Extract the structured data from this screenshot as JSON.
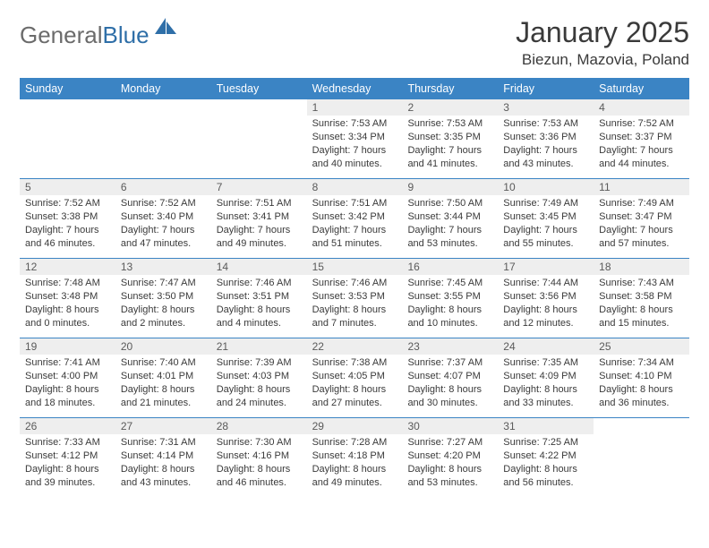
{
  "brand": {
    "part1": "General",
    "part2": "Blue"
  },
  "title": "January 2025",
  "subtitle": "Biezun, Mazovia, Poland",
  "colors": {
    "header_bg": "#3b84c4",
    "header_text": "#ffffff",
    "daynum_bg": "#eeeeee",
    "text": "#3a3a3a",
    "rule": "#3b84c4"
  },
  "weekdays": [
    "Sunday",
    "Monday",
    "Tuesday",
    "Wednesday",
    "Thursday",
    "Friday",
    "Saturday"
  ],
  "weeks": [
    [
      {
        "n": "",
        "sr": "",
        "ss": "",
        "dl": ""
      },
      {
        "n": "",
        "sr": "",
        "ss": "",
        "dl": ""
      },
      {
        "n": "",
        "sr": "",
        "ss": "",
        "dl": ""
      },
      {
        "n": "1",
        "sr": "Sunrise: 7:53 AM",
        "ss": "Sunset: 3:34 PM",
        "dl": "Daylight: 7 hours and 40 minutes."
      },
      {
        "n": "2",
        "sr": "Sunrise: 7:53 AM",
        "ss": "Sunset: 3:35 PM",
        "dl": "Daylight: 7 hours and 41 minutes."
      },
      {
        "n": "3",
        "sr": "Sunrise: 7:53 AM",
        "ss": "Sunset: 3:36 PM",
        "dl": "Daylight: 7 hours and 43 minutes."
      },
      {
        "n": "4",
        "sr": "Sunrise: 7:52 AM",
        "ss": "Sunset: 3:37 PM",
        "dl": "Daylight: 7 hours and 44 minutes."
      }
    ],
    [
      {
        "n": "5",
        "sr": "Sunrise: 7:52 AM",
        "ss": "Sunset: 3:38 PM",
        "dl": "Daylight: 7 hours and 46 minutes."
      },
      {
        "n": "6",
        "sr": "Sunrise: 7:52 AM",
        "ss": "Sunset: 3:40 PM",
        "dl": "Daylight: 7 hours and 47 minutes."
      },
      {
        "n": "7",
        "sr": "Sunrise: 7:51 AM",
        "ss": "Sunset: 3:41 PM",
        "dl": "Daylight: 7 hours and 49 minutes."
      },
      {
        "n": "8",
        "sr": "Sunrise: 7:51 AM",
        "ss": "Sunset: 3:42 PM",
        "dl": "Daylight: 7 hours and 51 minutes."
      },
      {
        "n": "9",
        "sr": "Sunrise: 7:50 AM",
        "ss": "Sunset: 3:44 PM",
        "dl": "Daylight: 7 hours and 53 minutes."
      },
      {
        "n": "10",
        "sr": "Sunrise: 7:49 AM",
        "ss": "Sunset: 3:45 PM",
        "dl": "Daylight: 7 hours and 55 minutes."
      },
      {
        "n": "11",
        "sr": "Sunrise: 7:49 AM",
        "ss": "Sunset: 3:47 PM",
        "dl": "Daylight: 7 hours and 57 minutes."
      }
    ],
    [
      {
        "n": "12",
        "sr": "Sunrise: 7:48 AM",
        "ss": "Sunset: 3:48 PM",
        "dl": "Daylight: 8 hours and 0 minutes."
      },
      {
        "n": "13",
        "sr": "Sunrise: 7:47 AM",
        "ss": "Sunset: 3:50 PM",
        "dl": "Daylight: 8 hours and 2 minutes."
      },
      {
        "n": "14",
        "sr": "Sunrise: 7:46 AM",
        "ss": "Sunset: 3:51 PM",
        "dl": "Daylight: 8 hours and 4 minutes."
      },
      {
        "n": "15",
        "sr": "Sunrise: 7:46 AM",
        "ss": "Sunset: 3:53 PM",
        "dl": "Daylight: 8 hours and 7 minutes."
      },
      {
        "n": "16",
        "sr": "Sunrise: 7:45 AM",
        "ss": "Sunset: 3:55 PM",
        "dl": "Daylight: 8 hours and 10 minutes."
      },
      {
        "n": "17",
        "sr": "Sunrise: 7:44 AM",
        "ss": "Sunset: 3:56 PM",
        "dl": "Daylight: 8 hours and 12 minutes."
      },
      {
        "n": "18",
        "sr": "Sunrise: 7:43 AM",
        "ss": "Sunset: 3:58 PM",
        "dl": "Daylight: 8 hours and 15 minutes."
      }
    ],
    [
      {
        "n": "19",
        "sr": "Sunrise: 7:41 AM",
        "ss": "Sunset: 4:00 PM",
        "dl": "Daylight: 8 hours and 18 minutes."
      },
      {
        "n": "20",
        "sr": "Sunrise: 7:40 AM",
        "ss": "Sunset: 4:01 PM",
        "dl": "Daylight: 8 hours and 21 minutes."
      },
      {
        "n": "21",
        "sr": "Sunrise: 7:39 AM",
        "ss": "Sunset: 4:03 PM",
        "dl": "Daylight: 8 hours and 24 minutes."
      },
      {
        "n": "22",
        "sr": "Sunrise: 7:38 AM",
        "ss": "Sunset: 4:05 PM",
        "dl": "Daylight: 8 hours and 27 minutes."
      },
      {
        "n": "23",
        "sr": "Sunrise: 7:37 AM",
        "ss": "Sunset: 4:07 PM",
        "dl": "Daylight: 8 hours and 30 minutes."
      },
      {
        "n": "24",
        "sr": "Sunrise: 7:35 AM",
        "ss": "Sunset: 4:09 PM",
        "dl": "Daylight: 8 hours and 33 minutes."
      },
      {
        "n": "25",
        "sr": "Sunrise: 7:34 AM",
        "ss": "Sunset: 4:10 PM",
        "dl": "Daylight: 8 hours and 36 minutes."
      }
    ],
    [
      {
        "n": "26",
        "sr": "Sunrise: 7:33 AM",
        "ss": "Sunset: 4:12 PM",
        "dl": "Daylight: 8 hours and 39 minutes."
      },
      {
        "n": "27",
        "sr": "Sunrise: 7:31 AM",
        "ss": "Sunset: 4:14 PM",
        "dl": "Daylight: 8 hours and 43 minutes."
      },
      {
        "n": "28",
        "sr": "Sunrise: 7:30 AM",
        "ss": "Sunset: 4:16 PM",
        "dl": "Daylight: 8 hours and 46 minutes."
      },
      {
        "n": "29",
        "sr": "Sunrise: 7:28 AM",
        "ss": "Sunset: 4:18 PM",
        "dl": "Daylight: 8 hours and 49 minutes."
      },
      {
        "n": "30",
        "sr": "Sunrise: 7:27 AM",
        "ss": "Sunset: 4:20 PM",
        "dl": "Daylight: 8 hours and 53 minutes."
      },
      {
        "n": "31",
        "sr": "Sunrise: 7:25 AM",
        "ss": "Sunset: 4:22 PM",
        "dl": "Daylight: 8 hours and 56 minutes."
      },
      {
        "n": "",
        "sr": "",
        "ss": "",
        "dl": ""
      }
    ]
  ]
}
